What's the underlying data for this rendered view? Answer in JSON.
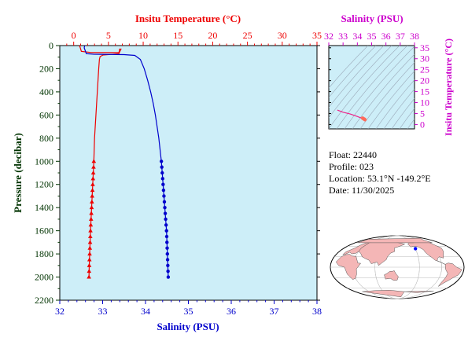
{
  "chart_data": [
    {
      "type": "line",
      "title": "",
      "top_axis": {
        "label": "Insitu Temperature (°C)",
        "range": [
          -2,
          35
        ],
        "ticks": [
          0,
          5,
          10,
          15,
          20,
          25,
          30,
          35
        ],
        "color": "#ee0000"
      },
      "bottom_axis": {
        "label": "Salinity (PSU)",
        "range": [
          32,
          38
        ],
        "ticks": [
          32,
          33,
          34,
          35,
          36,
          37,
          38
        ],
        "color": "#0000cc"
      },
      "left_axis": {
        "label": "Pressure (decibar)",
        "range": [
          0,
          2200
        ],
        "inverted": true,
        "ticks": [
          0,
          200,
          400,
          600,
          800,
          1000,
          1200,
          1400,
          1600,
          1800,
          2000,
          2200
        ],
        "color": "#003300"
      },
      "background": "#cdeef8",
      "grid": false,
      "series": [
        {
          "name": "",
          "axis": "top",
          "color": "#ee0000",
          "marker": "triangle",
          "line": [
            [
              0.8,
              0
            ],
            [
              0.9,
              10
            ],
            [
              1.1,
              50
            ],
            [
              2.5,
              60
            ],
            [
              6.5,
              60
            ],
            [
              6.6,
              40
            ],
            [
              6.6,
              30
            ],
            [
              6.8,
              30
            ],
            [
              6.5,
              70
            ],
            [
              5.6,
              75
            ],
            [
              4.2,
              82
            ],
            [
              3.8,
              95
            ],
            [
              3.7,
              120
            ],
            [
              3.6,
              200
            ],
            [
              3.5,
              300
            ],
            [
              3.4,
              400
            ],
            [
              3.3,
              500
            ],
            [
              3.2,
              600
            ],
            [
              3.1,
              700
            ],
            [
              3.0,
              800
            ],
            [
              2.95,
              900
            ],
            [
              2.9,
              1000
            ],
            [
              2.82,
              1100
            ],
            [
              2.74,
              1200
            ],
            [
              2.66,
              1300
            ],
            [
              2.58,
              1400
            ],
            [
              2.5,
              1500
            ],
            [
              2.42,
              1600
            ],
            [
              2.36,
              1700
            ],
            [
              2.3,
              1800
            ],
            [
              2.24,
              1900
            ],
            [
              2.2,
              2000
            ]
          ],
          "markers": [
            [
              2.9,
              1000
            ],
            [
              2.86,
              1050
            ],
            [
              2.82,
              1100
            ],
            [
              2.78,
              1150
            ],
            [
              2.74,
              1200
            ],
            [
              2.7,
              1250
            ],
            [
              2.66,
              1300
            ],
            [
              2.62,
              1350
            ],
            [
              2.58,
              1400
            ],
            [
              2.54,
              1450
            ],
            [
              2.5,
              1500
            ],
            [
              2.46,
              1550
            ],
            [
              2.42,
              1600
            ],
            [
              2.39,
              1650
            ],
            [
              2.36,
              1700
            ],
            [
              2.33,
              1750
            ],
            [
              2.3,
              1800
            ],
            [
              2.27,
              1850
            ],
            [
              2.24,
              1900
            ],
            [
              2.22,
              1950
            ],
            [
              2.2,
              2000
            ]
          ]
        },
        {
          "name": "",
          "axis": "bottom",
          "color": "#0000cc",
          "marker": "circle",
          "line": [
            [
              32.58,
              0
            ],
            [
              32.57,
              20
            ],
            [
              32.6,
              50
            ],
            [
              32.62,
              70
            ],
            [
              32.8,
              75
            ],
            [
              33.5,
              78
            ],
            [
              33.75,
              85
            ],
            [
              33.88,
              120
            ],
            [
              33.97,
              200
            ],
            [
              34.05,
              300
            ],
            [
              34.12,
              400
            ],
            [
              34.18,
              500
            ],
            [
              34.23,
              600
            ],
            [
              34.27,
              700
            ],
            [
              34.31,
              800
            ],
            [
              34.34,
              900
            ],
            [
              34.37,
              1000
            ],
            [
              34.39,
              1100
            ],
            [
              34.41,
              1200
            ],
            [
              34.43,
              1300
            ],
            [
              34.45,
              1400
            ],
            [
              34.47,
              1500
            ],
            [
              34.49,
              1600
            ],
            [
              34.5,
              1700
            ],
            [
              34.51,
              1800
            ],
            [
              34.52,
              1900
            ],
            [
              34.53,
              2000
            ]
          ],
          "markers": [
            [
              34.37,
              1000
            ],
            [
              34.38,
              1050
            ],
            [
              34.39,
              1100
            ],
            [
              34.4,
              1150
            ],
            [
              34.41,
              1200
            ],
            [
              34.42,
              1250
            ],
            [
              34.43,
              1300
            ],
            [
              34.44,
              1350
            ],
            [
              34.45,
              1400
            ],
            [
              34.46,
              1450
            ],
            [
              34.47,
              1500
            ],
            [
              34.48,
              1550
            ],
            [
              34.49,
              1600
            ],
            [
              34.495,
              1650
            ],
            [
              34.5,
              1700
            ],
            [
              34.505,
              1750
            ],
            [
              34.51,
              1800
            ],
            [
              34.515,
              1850
            ],
            [
              34.52,
              1900
            ],
            [
              34.525,
              1950
            ],
            [
              34.53,
              2000
            ]
          ]
        }
      ]
    },
    {
      "type": "scatter",
      "title": "",
      "top_axis": {
        "label": "Salinity (PSU)",
        "range": [
          32,
          38
        ],
        "ticks": [
          32,
          33,
          34,
          35,
          36,
          37,
          38
        ],
        "color": "#cc00cc"
      },
      "right_axis": {
        "label": "Insitu Temperature (°C)",
        "range": [
          -2,
          36
        ],
        "ticks": [
          0,
          5,
          10,
          15,
          20,
          25,
          30,
          35
        ],
        "color": "#cc00cc"
      },
      "background": "#cdeef8",
      "series": [
        {
          "name": "",
          "color": "#ee2288",
          "line": [
            [
              32.6,
              6.6
            ],
            [
              33.0,
              5.6
            ],
            [
              33.5,
              4.8
            ],
            [
              33.9,
              3.9
            ],
            [
              34.1,
              3.4
            ],
            [
              34.25,
              3.0
            ],
            [
              34.37,
              2.9
            ],
            [
              34.45,
              2.5
            ],
            [
              34.53,
              2.2
            ]
          ],
          "markers": [
            [
              34.37,
              2.9
            ],
            [
              34.42,
              2.7
            ],
            [
              34.47,
              2.5
            ],
            [
              34.5,
              2.35
            ],
            [
              34.53,
              2.2
            ]
          ]
        }
      ]
    }
  ],
  "info": {
    "float": "Float:  22440",
    "profile": "Profile:  023",
    "location": "Location:  53.1°N  -149.2°E",
    "date": "Date:  11/30/2025"
  },
  "map": {
    "marker_lon": -149.2,
    "marker_lat": 53.1,
    "land_color": "#f4b6b6",
    "ocean_color": "#ffffff",
    "marker_color": "#0000ff"
  }
}
